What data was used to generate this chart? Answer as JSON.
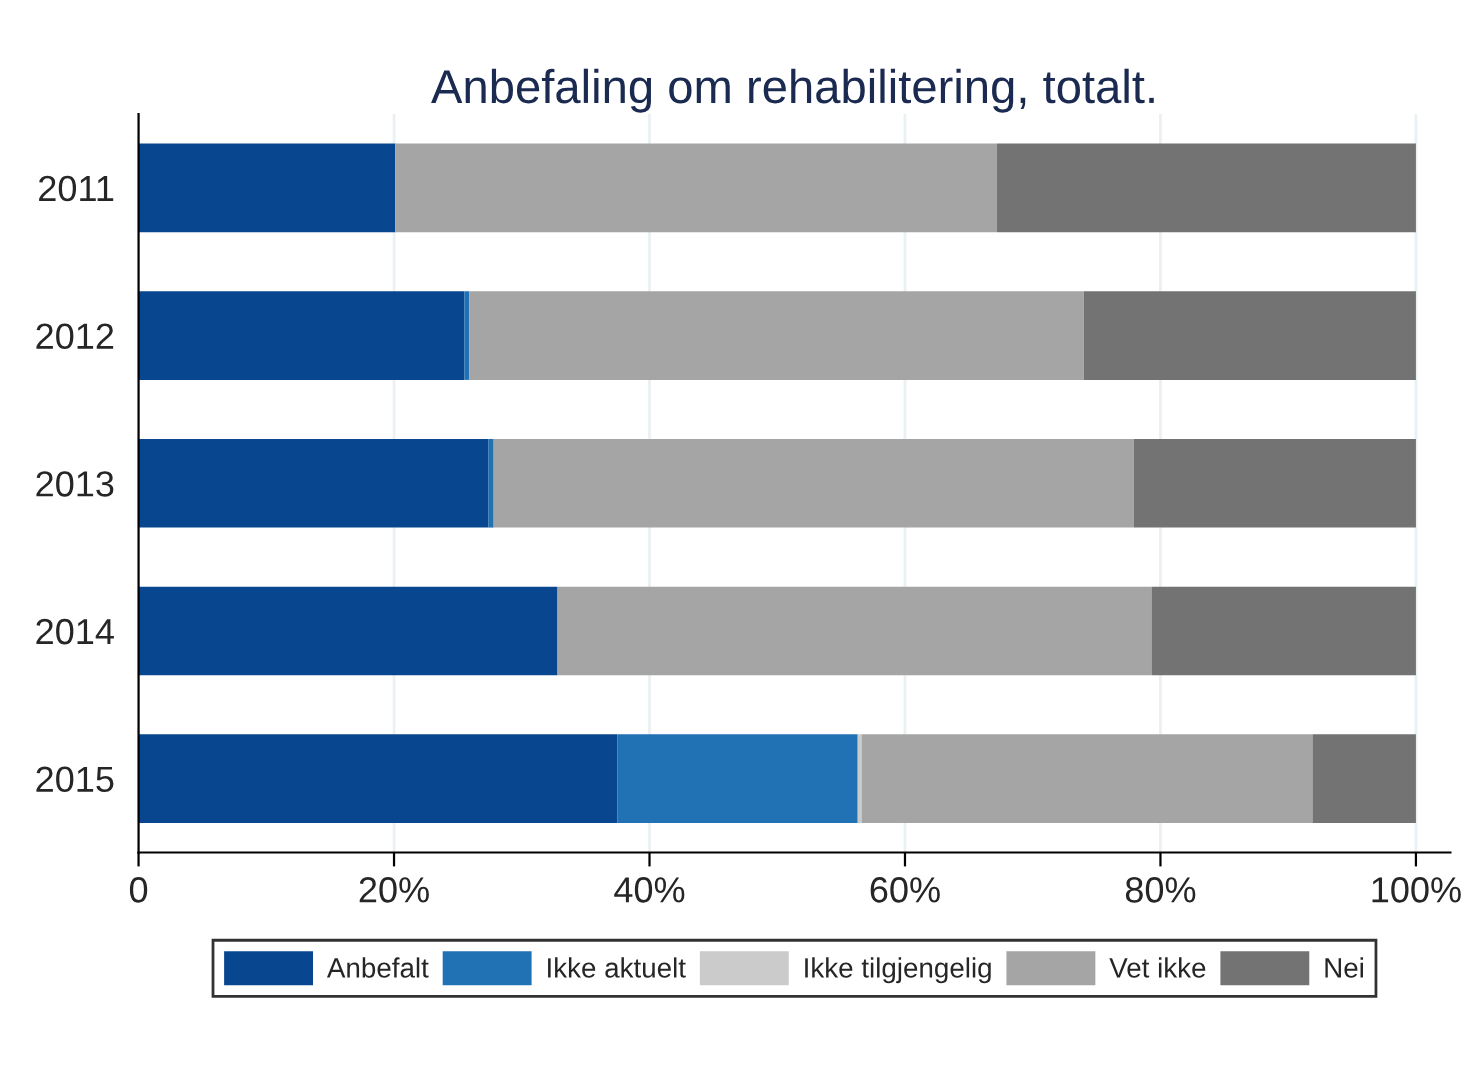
{
  "chart_data": {
    "type": "bar",
    "orientation": "horizontal",
    "stacked": true,
    "title": "Anbefaling om rehabilitering, totalt.",
    "categories": [
      "2011",
      "2012",
      "2013",
      "2014",
      "2015"
    ],
    "series": [
      {
        "name": "Anbefalt",
        "color": "#08478f",
        "values": [
          20.1,
          25.5,
          27.4,
          32.8,
          37.5
        ]
      },
      {
        "name": "Ikke aktuelt",
        "color": "#2171b5",
        "values": [
          0,
          0.4,
          0.4,
          0,
          18.8
        ]
      },
      {
        "name": "Ikke tilgjengelig",
        "color": "#cbcbcb",
        "values": [
          0,
          0,
          0,
          0,
          0.3
        ]
      },
      {
        "name": "Vet ikke",
        "color": "#a5a5a5",
        "values": [
          47.1,
          48.1,
          50.1,
          46.5,
          35.3
        ]
      },
      {
        "name": "Nei",
        "color": "#737373",
        "values": [
          32.8,
          26.0,
          22.1,
          20.7,
          8.1
        ]
      }
    ],
    "xlim": [
      0,
      102.7
    ],
    "xticks": [
      0,
      {
        "value": 20,
        "label": "20%"
      },
      {
        "value": 40,
        "label": "40%"
      },
      {
        "value": 60,
        "label": "60%"
      },
      {
        "value": 80,
        "label": "80%"
      },
      {
        "value": 100,
        "label": "100%"
      }
    ],
    "grid": "x",
    "legend": "bottom"
  }
}
